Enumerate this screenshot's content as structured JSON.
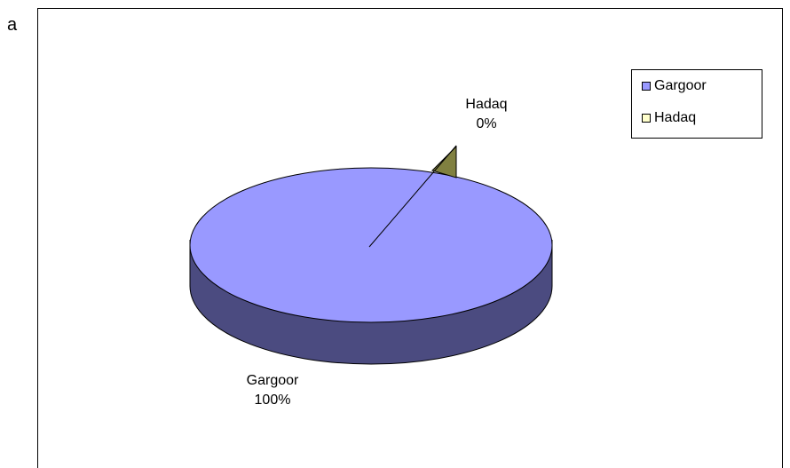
{
  "panel_label": "a",
  "chart_data": {
    "type": "pie",
    "style": "3d",
    "title": "",
    "slices": [
      {
        "label": "Gargoor",
        "value": 100,
        "percent_label": "100%",
        "color": "#9999ff",
        "side_color": "#4b4b80"
      },
      {
        "label": "Hadaq",
        "value": 0,
        "percent_label": "0%",
        "color": "#ffffcc",
        "side_color": "#808040"
      }
    ],
    "legend": {
      "position": "top-right",
      "items": [
        "Gargoor",
        "Hadaq"
      ]
    }
  }
}
